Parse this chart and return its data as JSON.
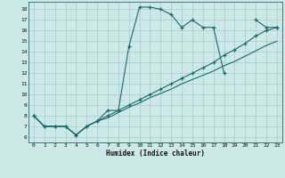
{
  "xlabel": "Humidex (Indice chaleur)",
  "bg_color": "#cce8e8",
  "line_color": "#1a6b6b",
  "grid_color": "#aacccc",
  "xlim": [
    -0.5,
    23.5
  ],
  "ylim": [
    5.5,
    18.7
  ],
  "yticks": [
    6,
    7,
    8,
    9,
    10,
    11,
    12,
    13,
    14,
    15,
    16,
    17,
    18
  ],
  "xticks": [
    0,
    1,
    2,
    3,
    4,
    5,
    6,
    7,
    8,
    9,
    10,
    11,
    12,
    13,
    14,
    15,
    16,
    17,
    18,
    19,
    20,
    21,
    22,
    23
  ],
  "line1_x": [
    0,
    1,
    2,
    3,
    4,
    5,
    6,
    7,
    8,
    9,
    10,
    11,
    12,
    13,
    14,
    15,
    16,
    17,
    18,
    21,
    22,
    23
  ],
  "line1_y": [
    8.0,
    7.0,
    7.0,
    7.0,
    6.2,
    7.0,
    7.5,
    8.5,
    8.5,
    14.5,
    18.2,
    18.2,
    18.0,
    17.5,
    16.3,
    17.0,
    16.3,
    16.3,
    12.0,
    17.0,
    16.3,
    16.3
  ],
  "line2_x": [
    0,
    1,
    2,
    3,
    4,
    5,
    6,
    7,
    8,
    9,
    10,
    11,
    12,
    13,
    14,
    15,
    16,
    17,
    18,
    19,
    20,
    21,
    22,
    23
  ],
  "line2_y": [
    8.0,
    7.0,
    7.0,
    7.0,
    6.2,
    7.0,
    7.5,
    8.0,
    8.5,
    9.0,
    9.5,
    10.0,
    10.5,
    11.0,
    11.5,
    12.0,
    12.5,
    13.0,
    13.7,
    14.2,
    14.8,
    15.5,
    16.0,
    16.3
  ],
  "line3_x": [
    0,
    1,
    2,
    3,
    4,
    5,
    6,
    7,
    8,
    9,
    10,
    11,
    12,
    13,
    14,
    15,
    16,
    17,
    18,
    19,
    20,
    21,
    22,
    23
  ],
  "line3_y": [
    8.0,
    7.0,
    7.0,
    7.0,
    6.2,
    7.0,
    7.5,
    7.8,
    8.3,
    8.8,
    9.2,
    9.7,
    10.1,
    10.5,
    11.0,
    11.4,
    11.8,
    12.2,
    12.7,
    13.1,
    13.6,
    14.1,
    14.6,
    15.0
  ]
}
